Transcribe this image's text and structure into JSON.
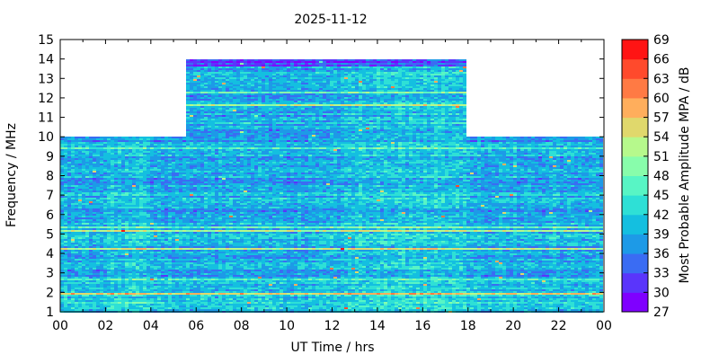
{
  "chart_data": {
    "type": "heatmap",
    "title": "2025-11-12",
    "xlabel": "UT Time / hrs",
    "ylabel": "Frequency / MHz",
    "xlim": [
      0,
      24
    ],
    "ylim": [
      1,
      15
    ],
    "x_ticks": [
      "00",
      "02",
      "04",
      "06",
      "08",
      "10",
      "12",
      "14",
      "16",
      "18",
      "20",
      "22",
      "00"
    ],
    "y_ticks": [
      "1",
      "2",
      "3",
      "4",
      "5",
      "6",
      "7",
      "8",
      "9",
      "10",
      "11",
      "12",
      "13",
      "14",
      "15"
    ],
    "colorbar": {
      "label": "Most Probable Amplitude MPA / dB",
      "min": 27,
      "max": 69,
      "ticks": [
        "27",
        "30",
        "33",
        "36",
        "39",
        "42",
        "45",
        "48",
        "51",
        "54",
        "57",
        "60",
        "63",
        "66",
        "69"
      ],
      "colors": [
        "#7f00ff",
        "#5a35fb",
        "#3a6cf3",
        "#1d9ae7",
        "#14bfe0",
        "#2ee0d6",
        "#58f5c5",
        "#88fdab",
        "#b6f98c",
        "#e0d86c",
        "#ffae5c",
        "#ff7a44",
        "#ff4a2c",
        "#ff1414"
      ]
    },
    "coverage": {
      "daytime_hours": [
        5.5,
        18
      ],
      "daytime_max_mhz": 14,
      "nighttime_max_mhz": 10
    },
    "typical_level_db": 39
  }
}
